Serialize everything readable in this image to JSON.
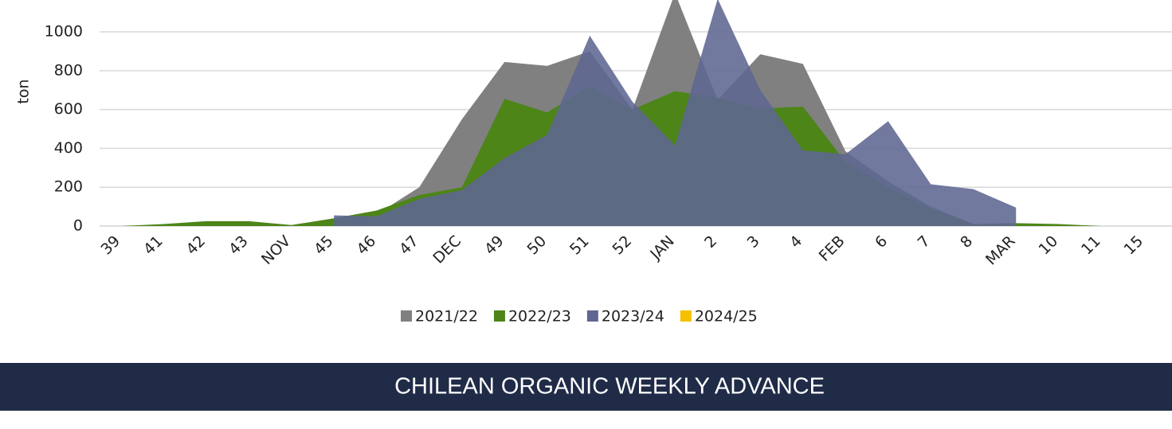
{
  "chart_data": {
    "type": "area",
    "y_label": "ton",
    "categories": [
      "39",
      "41",
      "42",
      "43",
      "NOV",
      "45",
      "46",
      "47",
      "DEC",
      "49",
      "50",
      "51",
      "52",
      "JAN",
      "2",
      "3",
      "4",
      "FEB",
      "6",
      "7",
      "8",
      "MAR",
      "10",
      "11",
      "15"
    ],
    "series": [
      {
        "name": "2021/22",
        "color": "#808080",
        "values": [
          null,
          0,
          10,
          10,
          0,
          20,
          60,
          200,
          550,
          845,
          825,
          900,
          600,
          1200,
          650,
          885,
          835,
          385,
          230,
          100,
          10,
          0,
          null,
          null,
          null
        ]
      },
      {
        "name": "2022/23",
        "color": "#4e8519",
        "values": [
          0,
          10,
          25,
          25,
          5,
          40,
          80,
          160,
          200,
          655,
          585,
          720,
          600,
          695,
          660,
          605,
          615,
          330,
          200,
          90,
          10,
          15,
          10,
          0,
          null
        ]
      },
      {
        "name": "2023/24",
        "color": "#5f6692",
        "values": [
          null,
          null,
          null,
          null,
          null,
          55,
          50,
          140,
          185,
          350,
          470,
          980,
          640,
          415,
          1170,
          700,
          390,
          370,
          540,
          215,
          190,
          95,
          null,
          null,
          null
        ]
      },
      {
        "name": "2024/25",
        "color": "#f5c000",
        "values": [
          null,
          null,
          null,
          null,
          null,
          null,
          null,
          null,
          null,
          null,
          null,
          null,
          null,
          null,
          null,
          null,
          null,
          null,
          null,
          null,
          null,
          null,
          null,
          null,
          null
        ]
      }
    ],
    "ylim": [
      0,
      1160
    ],
    "yticks": [
      0,
      200,
      400,
      600,
      800,
      1000
    ],
    "grid": true,
    "legend": "bottom",
    "banner": "CHILEAN ORGANIC WEEKLY ADVANCE"
  }
}
